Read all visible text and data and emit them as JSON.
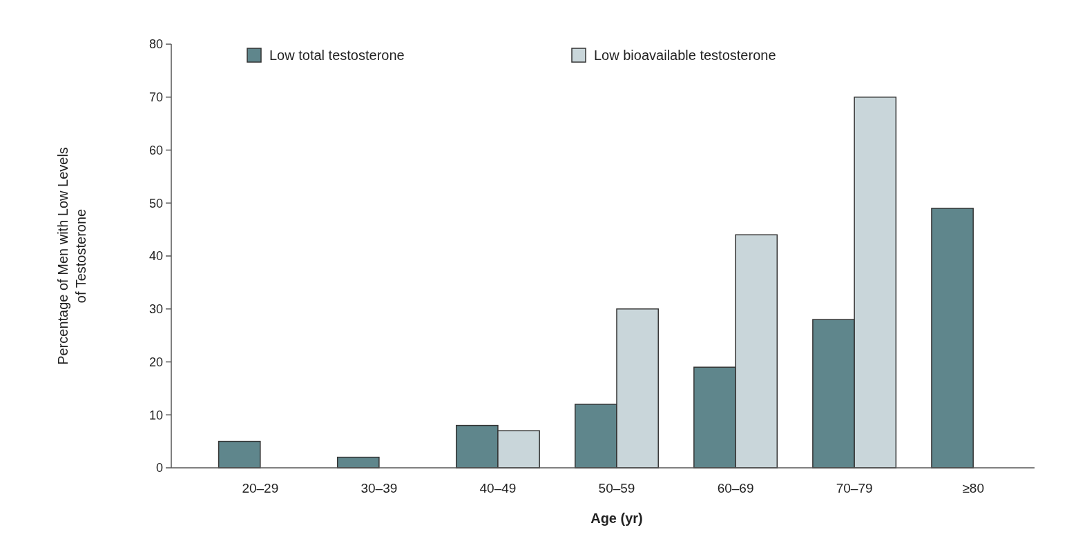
{
  "chart_data": {
    "type": "bar",
    "xlabel": "Age (yr)",
    "ylabel": "Percentage of Men with Low Levels\nof Testosterone",
    "categories": [
      "20–29",
      "30–39",
      "40–49",
      "50–59",
      "60–69",
      "70–79",
      "≥80"
    ],
    "series": [
      {
        "name": "Low total testosterone",
        "color": "#5f868c",
        "values": [
          5,
          2,
          8,
          12,
          19,
          28,
          49
        ]
      },
      {
        "name": "Low bioavailable testosterone",
        "color": "#c9d6da",
        "values": [
          null,
          null,
          7,
          30,
          44,
          70,
          null
        ]
      }
    ],
    "ylim": [
      0,
      80
    ],
    "yticks": [
      0,
      10,
      20,
      30,
      40,
      50,
      60,
      70,
      80
    ],
    "grid": false,
    "legend": "top"
  }
}
